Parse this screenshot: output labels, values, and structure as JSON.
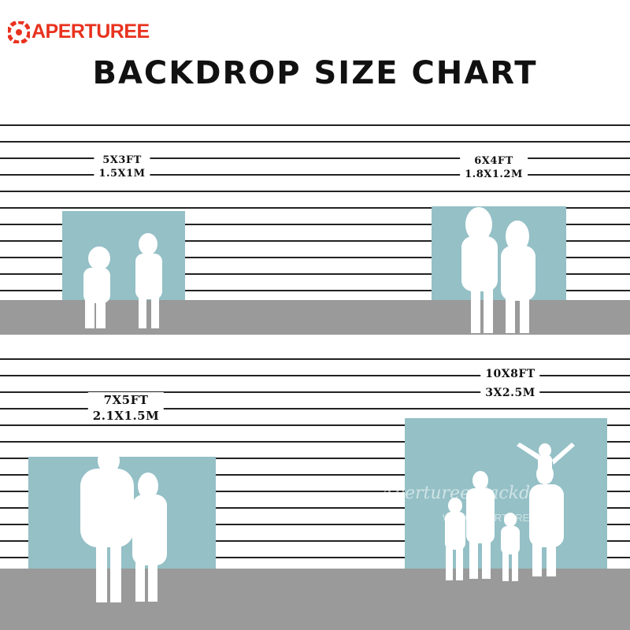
{
  "logo": {
    "text": "APERTUREE",
    "color": "#e8321e",
    "icon": "aperture-icon"
  },
  "title": "BACKDROP SIZE CHART",
  "sizes": [
    {
      "imperial": "5X3FT",
      "metric": "1.5X1M"
    },
    {
      "imperial": "6X4FT",
      "metric": "1.8X1.2M"
    },
    {
      "imperial": "7X5FT",
      "metric": "2.1X1.5M"
    },
    {
      "imperial": "10X8FT",
      "metric": "3X2.5M"
    }
  ],
  "watermark": {
    "script": "Aperturee Backdrop",
    "url": "WWW.APERTUREE.COM"
  },
  "colors": {
    "backdrop": "#94c0c6",
    "floor": "#9a9a9a",
    "stripes": "#222222"
  }
}
